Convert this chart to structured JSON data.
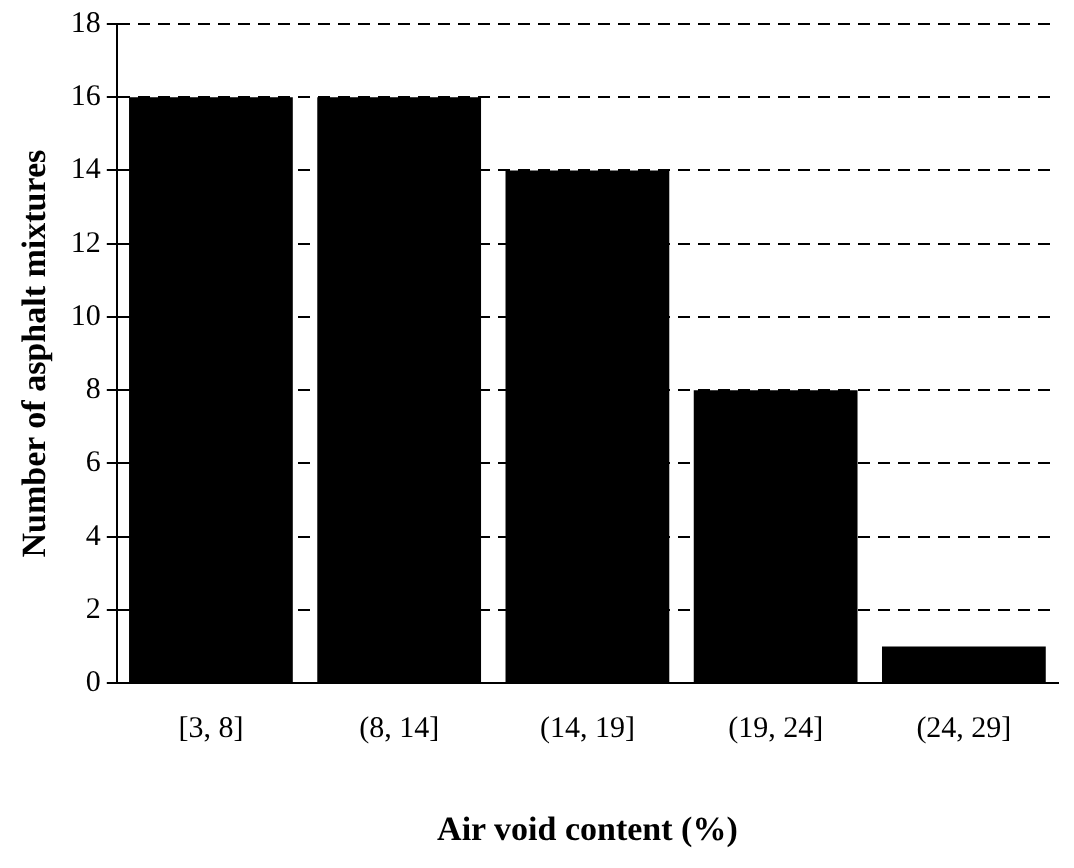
{
  "chart_data": {
    "type": "bar",
    "xlabel": "Air void content (%)",
    "ylabel": "Number of asphalt mixtures",
    "categories": [
      "[3, 8]",
      "(8, 14]",
      "(14, 19]",
      "(19, 24]",
      "(24, 29]"
    ],
    "values": [
      16,
      16,
      14,
      8,
      1
    ],
    "color": "#000000",
    "ylim": [
      0,
      18
    ],
    "yticks": [
      0,
      2,
      4,
      6,
      8,
      10,
      12,
      14,
      16,
      18
    ],
    "grid": "y",
    "legend": false
  }
}
